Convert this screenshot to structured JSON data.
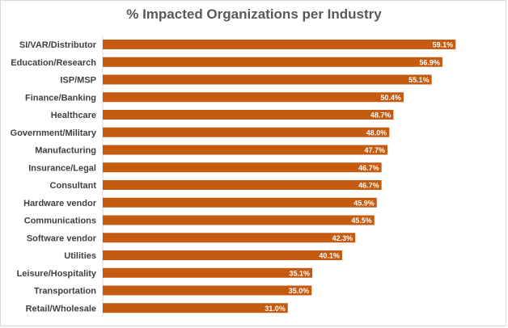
{
  "chart_data": {
    "type": "bar",
    "orientation": "horizontal",
    "title": "% Impacted Organizations per Industry",
    "xlabel": "",
    "ylabel": "",
    "xlim": [
      0,
      70
    ],
    "grid": false,
    "bar_color": "#C55A11",
    "categories": [
      "SI/VAR/Distributor",
      "Education/Research",
      "ISP/MSP",
      "Finance/Banking",
      "Healthcare",
      "Government/Military",
      "Manufacturing",
      "Insurance/Legal",
      "Consultant",
      "Hardware vendor",
      "Communications",
      "Software vendor",
      "Utilities",
      "Leisure/Hospitality",
      "Transportation",
      "Retail/Wholesale"
    ],
    "values": [
      59.1,
      56.9,
      55.1,
      50.4,
      48.7,
      48.0,
      47.7,
      46.7,
      46.7,
      45.9,
      45.5,
      42.3,
      40.1,
      35.1,
      35.0,
      31.0
    ],
    "value_labels": [
      "59.1%",
      "56.9%",
      "55.1%",
      "50.4%",
      "48.7%",
      "48.0%",
      "47.7%",
      "46.7%",
      "46.7%",
      "45.9%",
      "45.5%",
      "42.3%",
      "40.1%",
      "35.1%",
      "35.0%",
      "31.0%"
    ]
  }
}
